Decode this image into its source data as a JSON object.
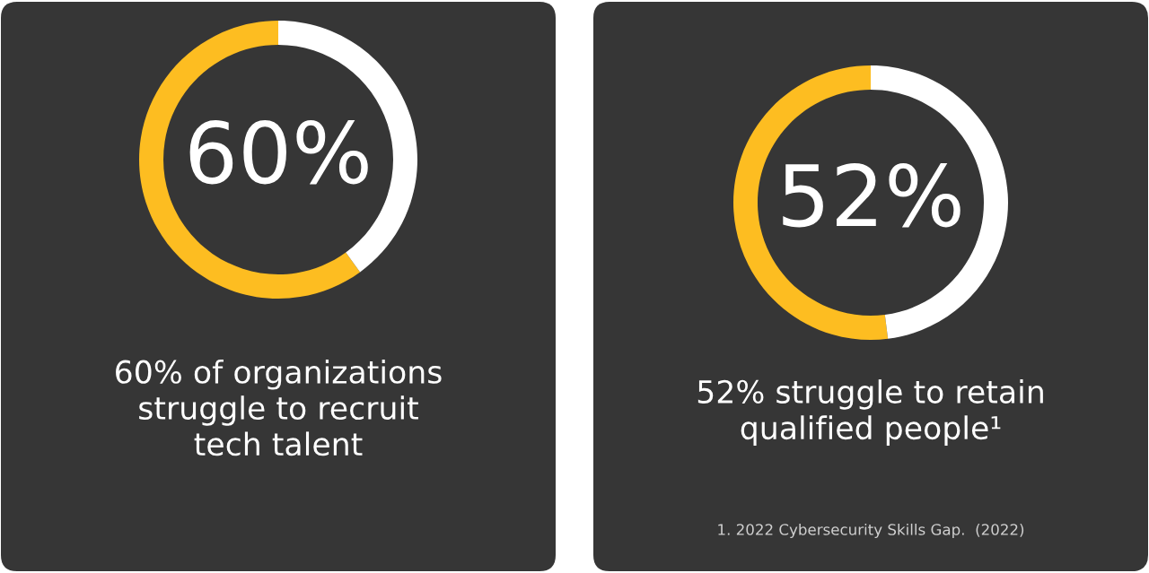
{
  "chart_data": [
    {
      "type": "donut",
      "categories": [
        null,
        null
      ],
      "values": [
        60,
        40
      ],
      "colors": [
        "#fdbd21",
        "#ffffff"
      ],
      "annotations": [
        "60%",
        "60% of organizations\nstruggle to recruit\ntech talent"
      ]
    },
    {
      "type": "donut",
      "categories": [
        null,
        null
      ],
      "values": [
        52,
        48
      ],
      "colors": [
        "#fdbd21",
        "#ffffff"
      ],
      "annotations": [
        "52%",
        "52% struggle to retain\nqualified people¹",
        "1. 2022 Cybersecurity Skills Gap.  (2022)"
      ]
    }
  ]
}
